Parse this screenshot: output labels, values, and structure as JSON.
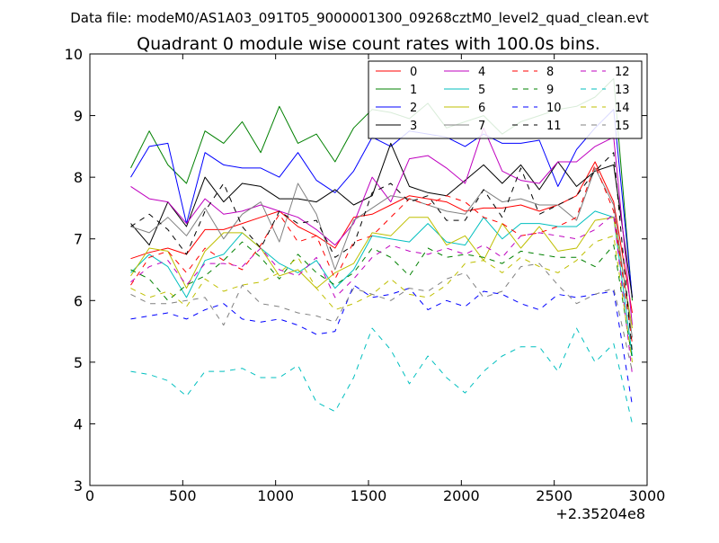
{
  "chart_data": {
    "type": "line",
    "suptitle": "Data file: modeM0/AS1A03_091T05_9000001300_09268cztM0_level2_quad_clean.evt",
    "title": "Quadrant 0 module wise count rates with 100.0s bins.",
    "xlabel": "",
    "ylabel": "",
    "x_offset_label": "+2.35204e8",
    "xlim": [
      0,
      3000
    ],
    "ylim": [
      3,
      10
    ],
    "xticks": [
      0,
      500,
      1000,
      1500,
      2000,
      2500,
      3000
    ],
    "yticks": [
      3,
      4,
      5,
      6,
      7,
      8,
      9,
      10
    ],
    "grid": false,
    "legend_position": "top-right",
    "legend_columns": 4,
    "x": [
      220,
      320,
      420,
      520,
      620,
      720,
      820,
      920,
      1020,
      1120,
      1220,
      1320,
      1420,
      1520,
      1620,
      1720,
      1820,
      1920,
      2020,
      2120,
      2220,
      2320,
      2420,
      2520,
      2620,
      2720,
      2820,
      2920
    ],
    "series": [
      {
        "name": "0",
        "color": "#ff0000",
        "dash": "solid",
        "values": [
          6.68,
          6.78,
          6.85,
          6.75,
          7.15,
          7.15,
          7.25,
          7.35,
          7.45,
          7.2,
          7.05,
          6.85,
          7.35,
          7.4,
          7.55,
          7.7,
          7.65,
          7.6,
          7.45,
          7.5,
          7.5,
          7.55,
          7.45,
          7.55,
          7.7,
          8.25,
          7.6,
          5.8
        ]
      },
      {
        "name": "1",
        "color": "#008000",
        "dash": "solid",
        "values": [
          8.15,
          8.75,
          8.2,
          7.9,
          8.75,
          8.55,
          8.9,
          8.4,
          9.15,
          8.55,
          8.7,
          8.25,
          8.8,
          9.1,
          9.05,
          8.95,
          9.2,
          8.8,
          8.9,
          9.0,
          8.7,
          8.9,
          9.0,
          9.1,
          9.15,
          9.3,
          9.6,
          6.0
        ]
      },
      {
        "name": "2",
        "color": "#0000ff",
        "dash": "solid",
        "values": [
          8.0,
          8.5,
          8.55,
          7.25,
          8.4,
          8.2,
          8.15,
          8.15,
          8.0,
          8.4,
          7.95,
          7.75,
          8.1,
          8.65,
          8.5,
          8.75,
          8.7,
          8.65,
          8.5,
          8.7,
          8.55,
          8.55,
          8.6,
          7.85,
          8.45,
          8.8,
          9.1,
          6.05
        ]
      },
      {
        "name": "3",
        "color": "#000000",
        "dash": "solid",
        "values": [
          7.25,
          6.9,
          7.6,
          7.2,
          8.0,
          7.6,
          7.9,
          7.85,
          7.65,
          7.65,
          7.6,
          7.8,
          7.55,
          7.7,
          8.55,
          7.85,
          7.75,
          7.7,
          7.95,
          8.2,
          7.9,
          8.2,
          7.8,
          8.25,
          7.85,
          8.1,
          8.2,
          6.05
        ]
      },
      {
        "name": "4",
        "color": "#bf00bf",
        "dash": "solid",
        "values": [
          7.85,
          7.65,
          7.6,
          7.25,
          7.65,
          7.4,
          7.45,
          7.55,
          7.45,
          7.35,
          7.15,
          6.9,
          7.25,
          8.0,
          7.6,
          8.3,
          8.35,
          8.15,
          7.9,
          8.8,
          8.1,
          7.95,
          7.9,
          8.25,
          8.25,
          8.5,
          8.65,
          5.6
        ]
      },
      {
        "name": "5",
        "color": "#00bfbf",
        "dash": "solid",
        "values": [
          6.45,
          6.75,
          6.55,
          6.05,
          6.65,
          6.75,
          7.1,
          6.85,
          6.6,
          6.45,
          6.65,
          6.2,
          6.5,
          7.05,
          7.0,
          6.95,
          7.25,
          6.95,
          6.9,
          7.35,
          7.0,
          7.25,
          7.25,
          7.2,
          7.2,
          7.45,
          7.35,
          5.1
        ]
      },
      {
        "name": "6",
        "color": "#bfbf00",
        "dash": "solid",
        "values": [
          6.4,
          6.85,
          6.8,
          6.2,
          6.8,
          7.1,
          7.1,
          6.85,
          6.4,
          6.5,
          6.2,
          6.45,
          6.6,
          7.1,
          7.05,
          7.35,
          7.35,
          6.9,
          7.05,
          6.65,
          7.25,
          6.85,
          7.2,
          6.8,
          6.85,
          7.3,
          7.35,
          5.55
        ]
      },
      {
        "name": "7",
        "color": "#808080",
        "dash": "solid",
        "values": [
          7.2,
          7.1,
          7.35,
          7.05,
          7.5,
          7.0,
          7.4,
          7.6,
          6.95,
          7.9,
          7.4,
          6.5,
          7.3,
          7.5,
          7.7,
          7.65,
          7.55,
          7.45,
          7.4,
          7.8,
          7.6,
          7.65,
          7.55,
          7.55,
          7.3,
          8.15,
          7.55,
          5.4
        ]
      },
      {
        "name": "8",
        "color": "#ff0000",
        "dash": "dashed",
        "values": [
          6.25,
          6.7,
          6.8,
          6.45,
          6.85,
          6.65,
          6.5,
          6.9,
          7.4,
          6.95,
          7.05,
          6.35,
          6.95,
          7.05,
          7.35,
          7.65,
          7.55,
          7.7,
          7.6,
          7.35,
          7.25,
          7.05,
          7.1,
          7.2,
          7.35,
          8.2,
          7.45,
          5.3
        ]
      },
      {
        "name": "9",
        "color": "#008000",
        "dash": "dashed",
        "values": [
          6.5,
          6.35,
          6.0,
          6.25,
          6.4,
          6.65,
          6.95,
          6.7,
          6.35,
          6.75,
          6.45,
          6.25,
          6.45,
          6.85,
          6.7,
          6.4,
          6.85,
          6.7,
          6.75,
          6.7,
          6.6,
          6.8,
          6.75,
          6.7,
          6.7,
          6.55,
          6.9,
          5.05
        ]
      },
      {
        "name": "10",
        "color": "#0000ff",
        "dash": "dashed",
        "values": [
          5.7,
          5.75,
          5.8,
          5.7,
          5.85,
          5.95,
          5.7,
          5.65,
          5.7,
          5.6,
          5.45,
          5.5,
          6.25,
          6.05,
          6.1,
          6.2,
          5.85,
          6.0,
          5.9,
          6.15,
          6.1,
          5.95,
          5.85,
          6.1,
          6.05,
          6.1,
          6.15,
          4.3
        ]
      },
      {
        "name": "11",
        "color": "#000000",
        "dash": "dashed",
        "values": [
          7.2,
          7.4,
          7.15,
          6.75,
          7.45,
          7.9,
          7.2,
          6.85,
          7.45,
          7.25,
          7.3,
          6.7,
          6.9,
          7.75,
          7.9,
          7.6,
          7.7,
          7.3,
          7.3,
          7.8,
          7.35,
          8.15,
          7.4,
          7.55,
          7.7,
          8.1,
          8.4,
          5.15
        ]
      },
      {
        "name": "12",
        "color": "#bf00bf",
        "dash": "dashed",
        "values": [
          6.3,
          6.55,
          6.65,
          6.25,
          6.6,
          6.6,
          6.55,
          6.85,
          6.5,
          6.4,
          6.7,
          6.05,
          6.35,
          6.7,
          6.9,
          6.8,
          6.75,
          6.85,
          6.75,
          6.9,
          6.7,
          7.05,
          7.1,
          7.05,
          7.0,
          7.15,
          7.4,
          4.8
        ]
      },
      {
        "name": "13",
        "color": "#00bfbf",
        "dash": "dashed",
        "values": [
          4.85,
          4.8,
          4.7,
          4.45,
          4.85,
          4.85,
          4.9,
          4.75,
          4.75,
          4.95,
          4.35,
          4.2,
          4.75,
          5.55,
          5.2,
          4.65,
          5.1,
          4.75,
          4.5,
          4.85,
          5.1,
          5.25,
          5.25,
          4.85,
          5.55,
          5.0,
          5.3,
          4.0
        ]
      },
      {
        "name": "14",
        "color": "#bfbf00",
        "dash": "dashed",
        "values": [
          6.2,
          6.05,
          6.15,
          5.9,
          6.35,
          6.15,
          6.25,
          6.3,
          6.45,
          6.7,
          6.2,
          5.85,
          5.95,
          6.1,
          6.35,
          6.1,
          6.05,
          6.25,
          6.6,
          6.65,
          6.45,
          6.7,
          6.55,
          6.45,
          6.65,
          6.95,
          7.05,
          5.0
        ]
      },
      {
        "name": "15",
        "color": "#808080",
        "dash": "dashed",
        "values": [
          6.1,
          5.95,
          5.95,
          6.0,
          6.05,
          5.6,
          6.25,
          5.95,
          5.9,
          5.8,
          5.75,
          5.65,
          6.2,
          6.1,
          6.0,
          6.2,
          6.15,
          6.35,
          6.45,
          6.05,
          6.15,
          6.55,
          6.6,
          6.25,
          5.95,
          6.1,
          6.2,
          4.85
        ]
      }
    ]
  }
}
